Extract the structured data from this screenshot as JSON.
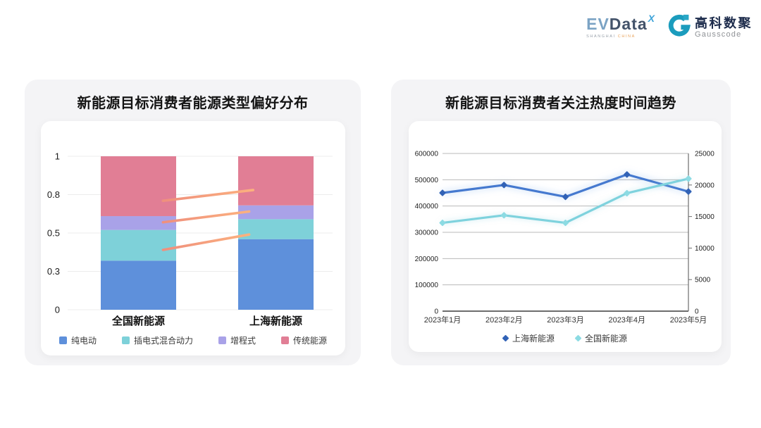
{
  "brand": {
    "evdata": {
      "part1": "EV",
      "part2": "Data",
      "sup": "X",
      "sub1": "SHANGHAI",
      "sub2": "CHINA"
    },
    "gausscode": {
      "cn": "高科数聚",
      "en": "Gausscode"
    }
  },
  "chart_data": [
    {
      "type": "bar",
      "stacked": true,
      "title": "新能源目标消费者能源类型偏好分布",
      "categories": [
        "全国新能源",
        "上海新能源"
      ],
      "series": [
        {
          "name": "纯电动",
          "color": "#5e90db",
          "values": [
            0.32,
            0.46
          ]
        },
        {
          "name": "插电式混合动力",
          "color": "#7ed1d9",
          "values": [
            0.2,
            0.13
          ]
        },
        {
          "name": "增程式",
          "color": "#a9a2e8",
          "values": [
            0.09,
            0.09
          ]
        },
        {
          "name": "传统能源",
          "color": "#e17e95",
          "values": [
            0.39,
            0.32
          ]
        }
      ],
      "y_ticks": [
        "0",
        "0.3",
        "0.5",
        "0.8",
        "1"
      ],
      "axis_note": "y ticks equally spaced",
      "grid": true,
      "legend_position": "bottom",
      "annotations": {
        "connector_lines": {
          "color_start": "#ef8f7d",
          "color_end": "#fcb17e",
          "lines": [
            {
              "x1": 0.36,
              "y1": 0.71,
              "x2": 0.7,
              "y2": 0.78
            },
            {
              "x1": 0.36,
              "y1": 0.57,
              "x2": 0.685,
              "y2": 0.64
            },
            {
              "x1": 0.36,
              "y1": 0.39,
              "x2": 0.685,
              "y2": 0.49
            }
          ]
        }
      }
    },
    {
      "type": "line",
      "title": "新能源目标消费者关注热度时间趋势",
      "x": [
        "2023年1月",
        "2023年2月",
        "2023年3月",
        "2023年4月",
        "2023年5月"
      ],
      "series": [
        {
          "name": "上海新能源",
          "axis": "left",
          "color": "#4579cf",
          "marker_color": "#3162b6",
          "values": [
            450000,
            480000,
            435000,
            520000,
            455000
          ]
        },
        {
          "name": "全国新能源",
          "axis": "right",
          "color": "#7ed2dd",
          "marker_color": "#8cdbe3",
          "values": [
            14000,
            15200,
            14000,
            18700,
            21000
          ]
        }
      ],
      "left_axis": {
        "min": 0,
        "max": 600000,
        "ticks": [
          "0",
          "100000",
          "200000",
          "300000",
          "400000",
          "500000",
          "600000"
        ]
      },
      "right_axis": {
        "min": 0,
        "max": 25000,
        "ticks": [
          "0",
          "5000",
          "10000",
          "15000",
          "20000",
          "25000"
        ]
      },
      "grid": true,
      "legend_position": "bottom"
    }
  ]
}
